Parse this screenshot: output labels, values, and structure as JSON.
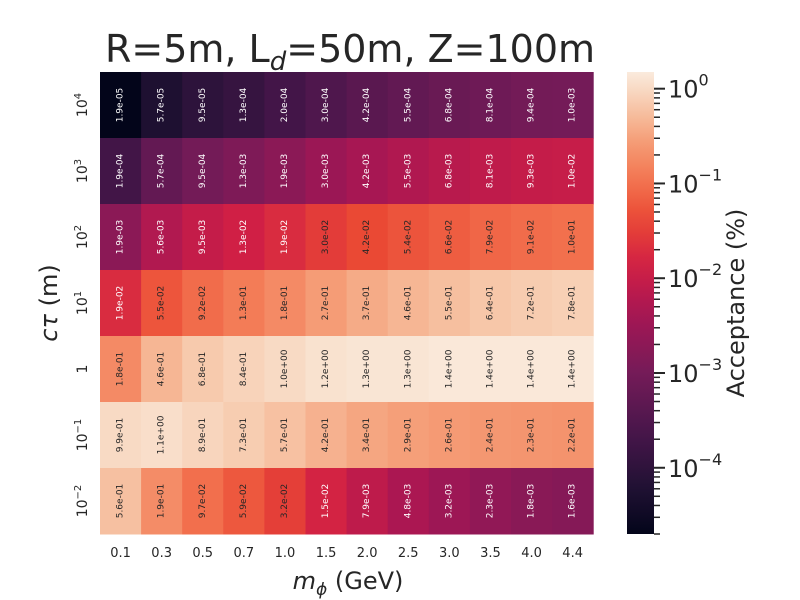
{
  "chart_data": {
    "type": "heatmap",
    "title": {
      "pre": "R=5m, L",
      "sub": "d",
      "post": "=50m, Z=100m"
    },
    "xlabel": {
      "symbol": "m",
      "sub": "ϕ",
      "rest": " (GeV)"
    },
    "ylabel": {
      "symbol": "cτ",
      "rest": " (m)"
    },
    "colorbar_label": "Acceptance (%)",
    "x_categories": [
      "0.1",
      "0.3",
      "0.5",
      "0.7",
      "1.0",
      "1.5",
      "2.0",
      "2.5",
      "3.0",
      "3.5",
      "4.0",
      "4.4"
    ],
    "y_categories": [
      {
        "base": "10",
        "exp": "4"
      },
      {
        "base": "10",
        "exp": "3"
      },
      {
        "base": "10",
        "exp": "2"
      },
      {
        "base": "10",
        "exp": "1"
      },
      {
        "base": "1",
        "exp": ""
      },
      {
        "base": "10",
        "exp": "−1"
      },
      {
        "base": "10",
        "exp": "−2"
      }
    ],
    "labels": [
      [
        "1.9e-05",
        "5.7e-05",
        "9.5e-05",
        "1.3e-04",
        "2.0e-04",
        "3.0e-04",
        "4.2e-04",
        "5.5e-04",
        "6.8e-04",
        "8.1e-04",
        "9.4e-04",
        "1.0e-03"
      ],
      [
        "1.9e-04",
        "5.7e-04",
        "9.5e-04",
        "1.3e-03",
        "1.9e-03",
        "3.0e-03",
        "4.2e-03",
        "5.5e-03",
        "6.8e-03",
        "8.1e-03",
        "9.3e-03",
        "1.0e-02"
      ],
      [
        "1.9e-03",
        "5.6e-03",
        "9.5e-03",
        "1.3e-02",
        "1.9e-02",
        "3.0e-02",
        "4.2e-02",
        "5.4e-02",
        "6.6e-02",
        "7.9e-02",
        "9.1e-02",
        "1.0e-01"
      ],
      [
        "1.9e-02",
        "5.5e-02",
        "9.2e-02",
        "1.3e-01",
        "1.8e-01",
        "2.7e-01",
        "3.7e-01",
        "4.6e-01",
        "5.5e-01",
        "6.4e-01",
        "7.2e-01",
        "7.8e-01"
      ],
      [
        "1.8e-01",
        "4.6e-01",
        "6.8e-01",
        "8.4e-01",
        "1.0e+00",
        "1.2e+00",
        "1.3e+00",
        "1.3e+00",
        "1.4e+00",
        "1.4e+00",
        "1.4e+00",
        "1.4e+00"
      ],
      [
        "9.9e-01",
        "1.1e+00",
        "8.9e-01",
        "7.3e-01",
        "5.7e-01",
        "4.2e-01",
        "3.4e-01",
        "2.9e-01",
        "2.6e-01",
        "2.4e-01",
        "2.3e-01",
        "2.2e-01"
      ],
      [
        "5.6e-01",
        "1.9e-01",
        "9.7e-02",
        "5.9e-02",
        "3.2e-02",
        "1.5e-02",
        "7.9e-03",
        "4.8e-03",
        "3.2e-03",
        "2.3e-03",
        "1.8e-03",
        "1.6e-03"
      ]
    ],
    "colorbar_ticks": [
      {
        "base": "10",
        "exp": "0",
        "value": 1
      },
      {
        "base": "10",
        "exp": "−1",
        "value": 0.1
      },
      {
        "base": "10",
        "exp": "−2",
        "value": 0.01
      },
      {
        "base": "10",
        "exp": "−3",
        "value": 0.001
      },
      {
        "base": "10",
        "exp": "−4",
        "value": 0.0001
      }
    ],
    "color_scale": "log",
    "colorbar_range": [
      2e-05,
      1.5
    ],
    "colormap": "rocket",
    "grid": false
  }
}
